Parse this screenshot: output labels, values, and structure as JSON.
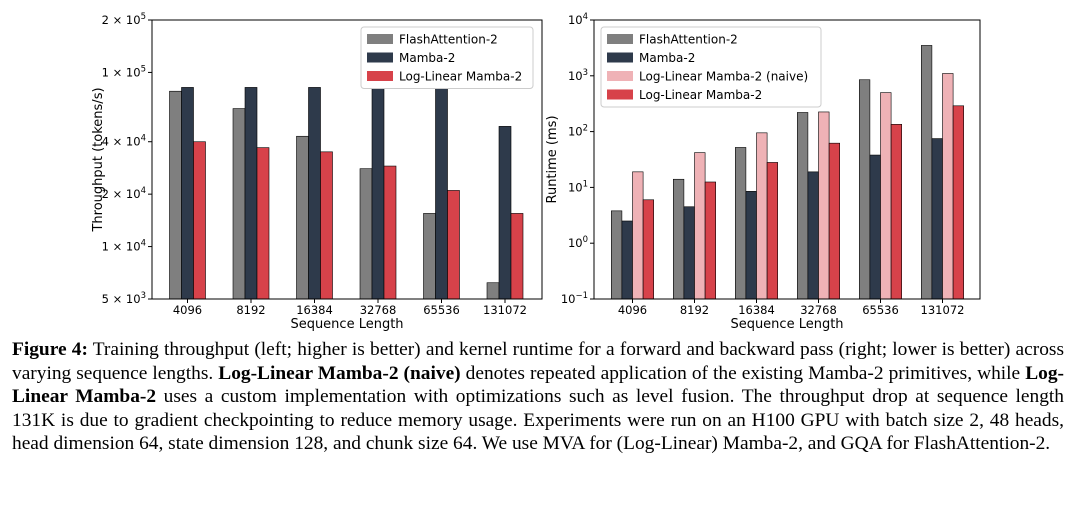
{
  "chart_data": [
    {
      "type": "bar",
      "ylabel": "Throughput (tokens/s)",
      "xlabel": "Sequence Length",
      "yscale": "log",
      "ylim": [
        5000,
        200000
      ],
      "yticks": [
        {
          "value": 200000,
          "base": "2 × 10",
          "exp": "5"
        },
        {
          "value": 100000,
          "base": "1 × 10",
          "exp": "5"
        },
        {
          "value": 40000,
          "base": "4 × 10",
          "exp": "4"
        },
        {
          "value": 20000,
          "base": "2 × 10",
          "exp": "4"
        },
        {
          "value": 10000,
          "base": "1 × 10",
          "exp": "4"
        },
        {
          "value": 5000,
          "base": "5 × 10",
          "exp": "3"
        }
      ],
      "categories": [
        "4096",
        "8192",
        "16384",
        "32768",
        "65536",
        "131072"
      ],
      "legend_position": "top-right",
      "series": [
        {
          "name": "FlashAttention-2",
          "color": "#7f7f7f",
          "values": [
            78000,
            62000,
            43000,
            28000,
            15500,
            6200
          ]
        },
        {
          "name": "Mamba-2",
          "color": "#2e3a4b",
          "values": [
            82000,
            82000,
            82000,
            82000,
            82000,
            49000
          ]
        },
        {
          "name": "Log-Linear Mamba-2",
          "color": "#d7424a",
          "values": [
            40000,
            37000,
            35000,
            29000,
            21000,
            15500
          ]
        }
      ]
    },
    {
      "type": "bar",
      "ylabel": "Runtime (ms)",
      "xlabel": "Sequence Length",
      "yscale": "log",
      "ylim": [
        0.1,
        10000
      ],
      "yticks": [
        {
          "value": 10000,
          "base": "10",
          "exp": "4"
        },
        {
          "value": 1000,
          "base": "10",
          "exp": "3"
        },
        {
          "value": 100,
          "base": "10",
          "exp": "2"
        },
        {
          "value": 10,
          "base": "10",
          "exp": "1"
        },
        {
          "value": 1,
          "base": "10",
          "exp": "0"
        },
        {
          "value": 0.1,
          "base": "10",
          "exp": "−1"
        }
      ],
      "categories": [
        "4096",
        "8192",
        "16384",
        "32768",
        "65536",
        "131072"
      ],
      "legend_position": "top-left",
      "series": [
        {
          "name": "FlashAttention-2",
          "color": "#7f7f7f",
          "values": [
            3.8,
            14,
            52,
            220,
            850,
            3500
          ]
        },
        {
          "name": "Mamba-2",
          "color": "#2e3a4b",
          "values": [
            2.5,
            4.5,
            8.5,
            19,
            38,
            75
          ]
        },
        {
          "name": "Log-Linear Mamba-2 (naive)",
          "color": "#efb2b6",
          "values": [
            19,
            42,
            95,
            225,
            500,
            1100
          ]
        },
        {
          "name": "Log-Linear Mamba-2",
          "color": "#d7424a",
          "values": [
            6,
            12.5,
            28,
            62,
            135,
            290
          ]
        }
      ]
    }
  ],
  "caption": {
    "label": "Figure 4:",
    "part1": " Training throughput (left; higher is better) and kernel runtime for a forward and backward pass (right; lower is better) across varying sequence lengths. ",
    "bold1": "Log-Linear Mamba-2 (naive)",
    "part2": " denotes repeated application of the existing Mamba-2 primitives, while ",
    "bold2": "Log-Linear Mamba-2",
    "part3": " uses a custom implementation with optimizations such as level fusion. The throughput drop at sequence length 131K is due to gradient checkpointing to reduce memory usage. Experiments were run on an H100 GPU with batch size 2, 48 heads, head dimension 64, state dimension 128, and chunk size 64. We use MVA for (Log-Linear) Mamba-2, and GQA for FlashAttention-2."
  }
}
